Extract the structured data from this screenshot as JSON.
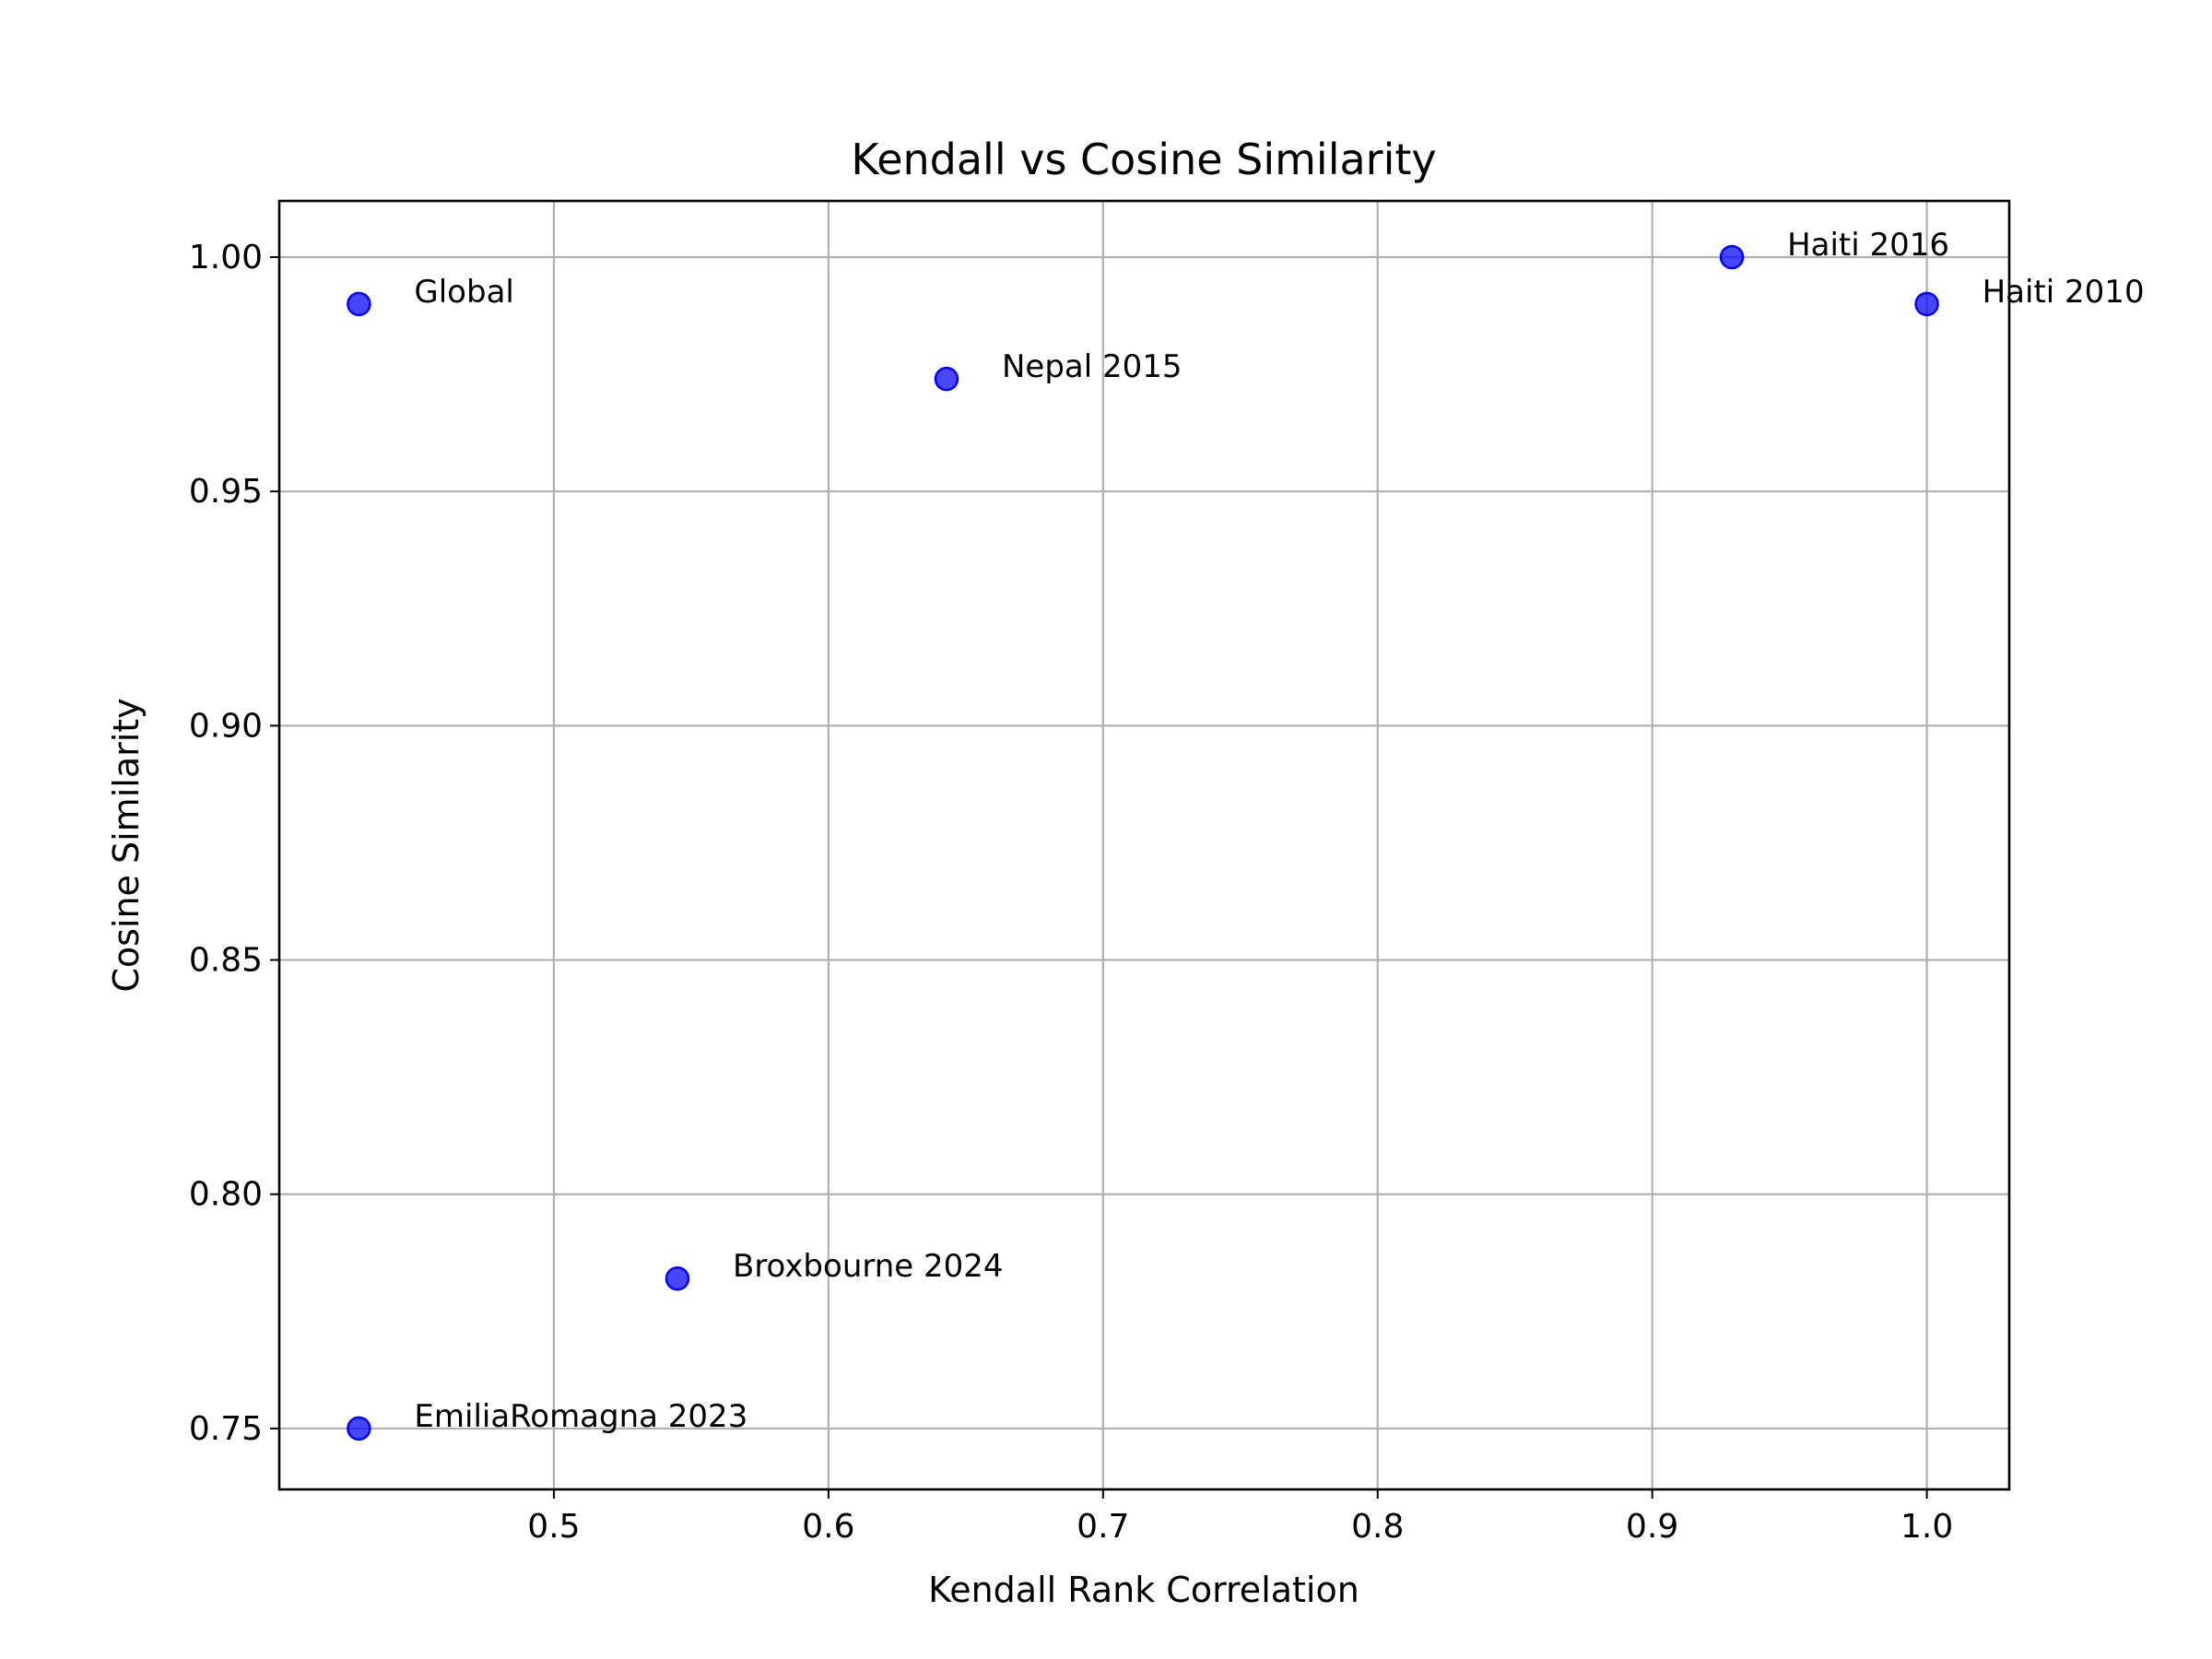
{
  "chart_data": {
    "type": "scatter",
    "title": "Kendall vs Cosine Similarity",
    "xlabel": "Kendall Rank Correlation",
    "ylabel": "Cosine Similarity",
    "xlim": [
      0.4,
      1.03
    ],
    "ylim": [
      0.737,
      1.012
    ],
    "xticks": [
      0.5,
      0.6,
      0.7,
      0.8,
      0.9,
      1.0
    ],
    "xtick_labels": [
      "0.5",
      "0.6",
      "0.7",
      "0.8",
      "0.9",
      "1.0"
    ],
    "yticks": [
      0.75,
      0.8,
      0.85,
      0.9,
      0.95,
      1.0
    ],
    "ytick_labels": [
      "0.75",
      "0.80",
      "0.85",
      "0.90",
      "0.95",
      "1.00"
    ],
    "grid": true,
    "marker_color": "#0000ff",
    "points": [
      {
        "label": "Global",
        "x": 0.429,
        "y": 0.99
      },
      {
        "label": "Nepal 2015",
        "x": 0.643,
        "y": 0.974
      },
      {
        "label": "Haiti 2016",
        "x": 0.929,
        "y": 1.0
      },
      {
        "label": "Haiti 2010",
        "x": 1.0,
        "y": 0.99
      },
      {
        "label": "Broxbourne 2024",
        "x": 0.545,
        "y": 0.782
      },
      {
        "label": "EmiliaRomagna 2023",
        "x": 0.429,
        "y": 0.75
      }
    ]
  }
}
